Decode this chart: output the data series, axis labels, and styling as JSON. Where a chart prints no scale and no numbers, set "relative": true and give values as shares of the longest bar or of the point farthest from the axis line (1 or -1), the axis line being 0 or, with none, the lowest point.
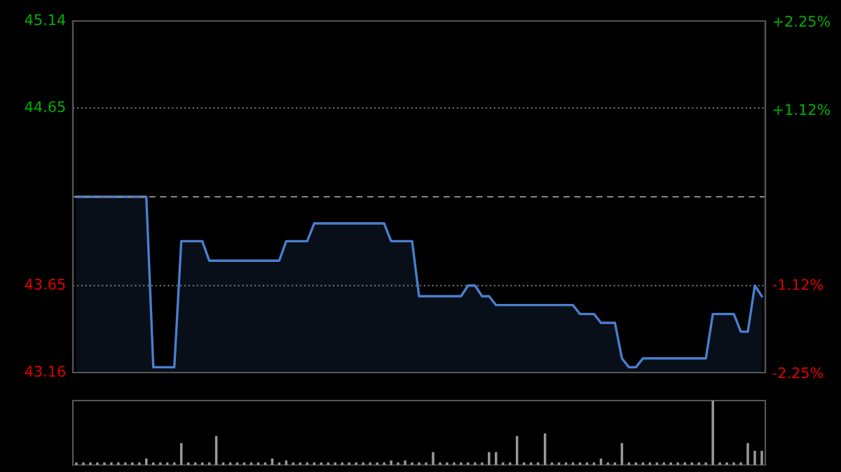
{
  "chart_data": [
    {
      "type": "area",
      "categories": [
        null,
        null,
        null,
        null,
        null,
        null,
        null,
        null,
        null,
        null,
        null,
        null,
        null,
        null,
        null,
        null,
        null,
        null,
        null,
        null,
        null,
        null,
        null,
        null,
        null,
        null,
        null,
        null,
        null,
        null,
        null,
        null,
        null,
        null,
        null,
        null,
        null,
        null,
        null,
        null,
        null,
        null,
        null,
        null,
        null,
        null,
        null,
        null,
        null,
        null,
        null,
        null,
        null,
        null,
        null,
        null,
        null,
        null,
        null,
        null,
        null,
        null,
        null,
        null,
        null,
        null,
        null,
        null,
        null,
        null,
        null,
        null,
        null,
        null,
        null,
        null,
        null,
        null,
        null,
        null,
        null,
        null,
        null,
        null,
        null,
        null,
        null,
        null,
        null,
        null,
        null,
        null,
        null,
        null,
        null,
        null,
        null,
        null,
        null
      ],
      "series": [
        {
          "color": "#4a7fd0",
          "values": [
            44.15,
            44.15,
            44.15,
            44.15,
            44.15,
            44.15,
            44.15,
            44.15,
            44.15,
            44.15,
            44.15,
            43.19,
            43.19,
            43.19,
            43.19,
            43.9,
            43.9,
            43.9,
            43.9,
            43.79,
            43.79,
            43.79,
            43.79,
            43.79,
            43.79,
            43.79,
            43.79,
            43.79,
            43.79,
            43.79,
            43.9,
            43.9,
            43.9,
            43.9,
            44.0,
            44.0,
            44.0,
            44.0,
            44.0,
            44.0,
            44.0,
            44.0,
            44.0,
            44.0,
            44.0,
            43.9,
            43.9,
            43.9,
            43.9,
            43.59,
            43.59,
            43.59,
            43.59,
            43.59,
            43.59,
            43.59,
            43.65,
            43.65,
            43.59,
            43.59,
            43.54,
            43.54,
            43.54,
            43.54,
            43.54,
            43.54,
            43.54,
            43.54,
            43.54,
            43.54,
            43.54,
            43.54,
            43.49,
            43.49,
            43.49,
            43.44,
            43.44,
            43.44,
            43.24,
            43.19,
            43.19,
            43.24,
            43.24,
            43.24,
            43.24,
            43.24,
            43.24,
            43.24,
            43.24,
            43.24,
            43.24,
            43.49,
            43.49,
            43.49,
            43.49,
            43.39,
            43.39,
            43.65,
            43.59
          ]
        }
      ],
      "ylim": [
        43.16,
        45.14
      ],
      "yticks": [
        43.16,
        43.65,
        44.65,
        45.14
      ],
      "y2lim": [
        -2.25,
        2.25
      ],
      "y2ticks": [
        {
          "value": -2.25,
          "label": "-2.25%"
        },
        {
          "value": -1.12,
          "label": "-1.12%"
        },
        {
          "value": 1.12,
          "label": "+1.12%"
        },
        {
          "value": 2.25,
          "label": "+2.25%"
        }
      ],
      "ref_lines": [
        {
          "axis": "y",
          "value": 44.15,
          "line_style": "dashed",
          "color": "#888888"
        }
      ],
      "grid": "y",
      "line_style": "solid"
    },
    {
      "type": "bar",
      "relative": true,
      "categories": [
        null,
        null,
        null,
        null,
        null,
        null,
        null,
        null,
        null,
        null,
        null,
        null,
        null,
        null,
        null,
        null,
        null,
        null,
        null,
        null,
        null,
        null,
        null,
        null,
        null,
        null,
        null,
        null,
        null,
        null,
        null,
        null,
        null,
        null,
        null,
        null,
        null,
        null,
        null,
        null,
        null,
        null,
        null,
        null,
        null,
        null,
        null,
        null,
        null,
        null,
        null,
        null,
        null,
        null,
        null,
        null,
        null,
        null,
        null,
        null,
        null,
        null,
        null,
        null,
        null,
        null,
        null,
        null,
        null,
        null,
        null,
        null,
        null,
        null,
        null,
        null,
        null,
        null,
        null,
        null,
        null,
        null,
        null,
        null,
        null,
        null,
        null,
        null,
        null,
        null,
        null,
        null,
        null,
        null,
        null,
        null,
        null,
        null,
        null
      ],
      "series": [
        {
          "color": "#999999",
          "values": [
            0.04,
            0.04,
            0.04,
            0.04,
            0.04,
            0.04,
            0.04,
            0.04,
            0.04,
            0.04,
            0.1,
            0.04,
            0.04,
            0.04,
            0.04,
            0.34,
            0.04,
            0.04,
            0.04,
            0.04,
            0.45,
            0.04,
            0.04,
            0.04,
            0.04,
            0.04,
            0.04,
            0.04,
            0.1,
            0.04,
            0.07,
            0.04,
            0.04,
            0.04,
            0.04,
            0.04,
            0.04,
            0.04,
            0.04,
            0.04,
            0.04,
            0.04,
            0.04,
            0.04,
            0.04,
            0.07,
            0.04,
            0.07,
            0.04,
            0.04,
            0.04,
            0.2,
            0.04,
            0.04,
            0.04,
            0.04,
            0.04,
            0.04,
            0.04,
            0.2,
            0.2,
            0.04,
            0.04,
            0.45,
            0.04,
            0.04,
            0.04,
            0.49,
            0.04,
            0.04,
            0.04,
            0.04,
            0.04,
            0.04,
            0.04,
            0.1,
            0.04,
            0.04,
            0.34,
            0.04,
            0.04,
            0.04,
            0.04,
            0.04,
            0.04,
            0.04,
            0.04,
            0.04,
            0.04,
            0.04,
            0.04,
            1,
            0.04,
            0.04,
            0.04,
            0.04,
            0.34,
            0.22,
            0.22
          ]
        }
      ],
      "legend": false
    }
  ]
}
